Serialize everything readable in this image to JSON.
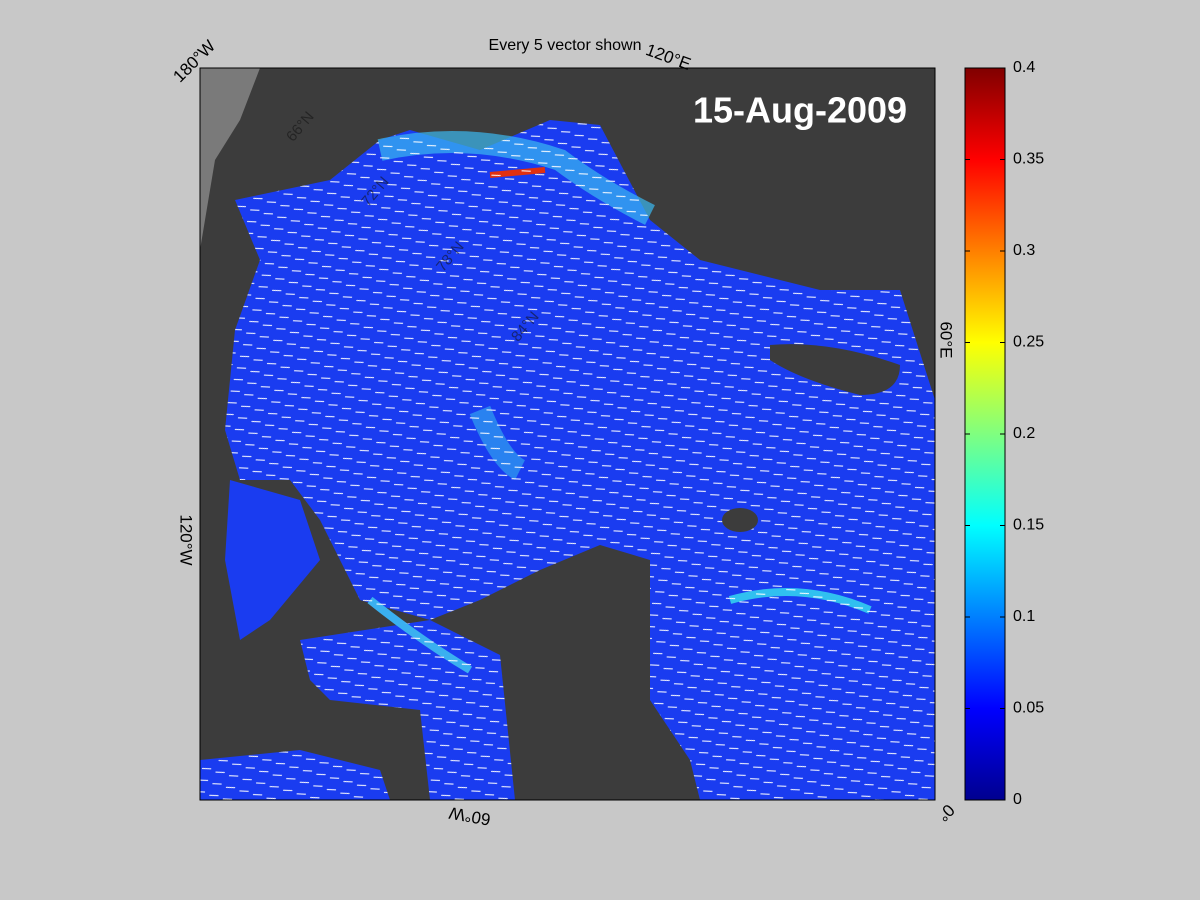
{
  "title": "Every 5 vector shown",
  "date_label": "15-Aug-2009",
  "longitude_labels": [
    "180°W",
    "120°E",
    "60°E",
    "0°",
    "60°W",
    "120°W"
  ],
  "latitude_labels": [
    "66°N",
    "72°N",
    "78°N",
    "84°N"
  ],
  "colorbar": {
    "lim": [
      0,
      0.4
    ],
    "ticks": [
      0,
      0.05,
      0.1,
      0.15,
      0.2,
      0.25,
      0.3,
      0.35,
      0.4
    ]
  }
}
